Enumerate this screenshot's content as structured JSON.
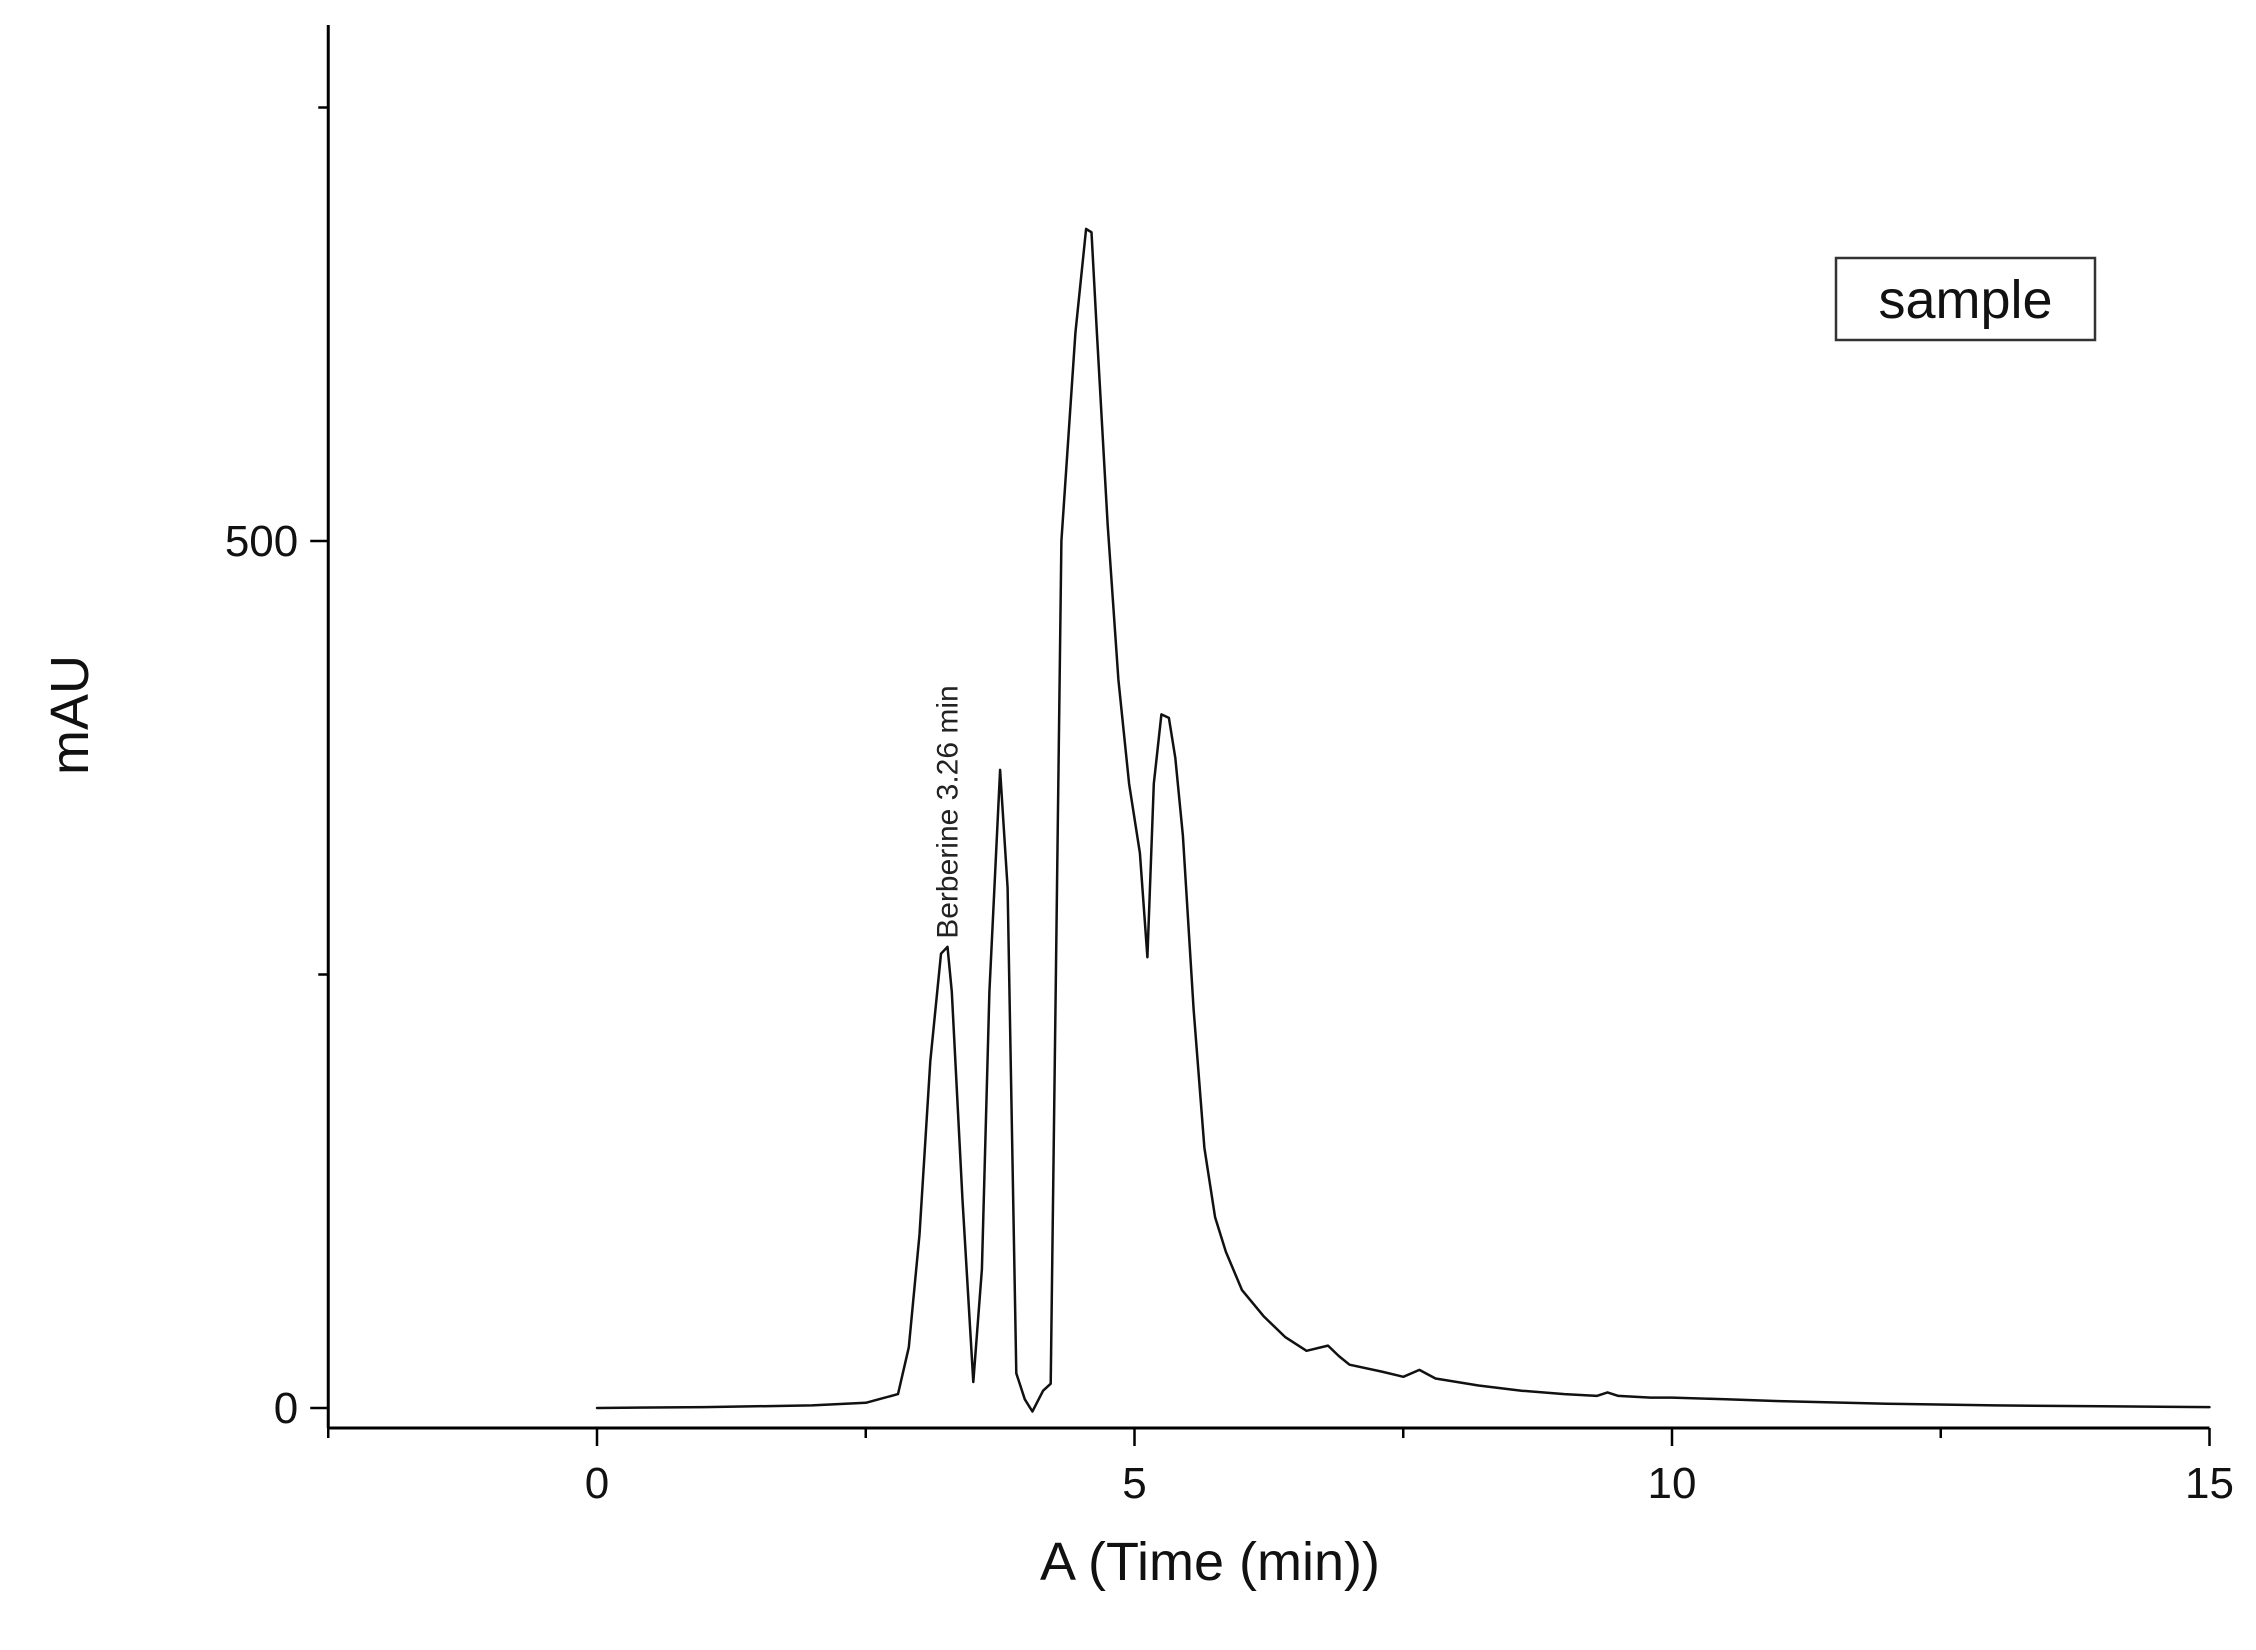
{
  "chart_data": {
    "type": "line",
    "title": "",
    "xlabel": "A (Time (min))",
    "ylabel": "mAU",
    "xlim": [
      -2.5,
      15
    ],
    "ylim": [
      -10,
      800
    ],
    "x_ticks": [
      0,
      5,
      10,
      15
    ],
    "x_tick_labels": [
      "0",
      "5",
      "10",
      "15"
    ],
    "x_minor_ticks": [
      -2.5,
      2.5,
      7.5,
      12.5
    ],
    "y_ticks": [
      0,
      500
    ],
    "y_tick_labels": [
      "0",
      "500"
    ],
    "y_minor_ticks": [
      250,
      750
    ],
    "grid": false,
    "legend": {
      "position": "top-right",
      "entries": [
        "sample"
      ]
    },
    "annotations": [
      {
        "text": "Berberine  3.26 min",
        "x": 3.26,
        "y": 266,
        "rotation": -90
      }
    ],
    "series": [
      {
        "name": "sample",
        "color": "#111111",
        "x": [
          0,
          1.0,
          2.0,
          2.5,
          2.8,
          2.9,
          3.0,
          3.1,
          3.2,
          3.26,
          3.3,
          3.4,
          3.5,
          3.58,
          3.65,
          3.75,
          3.82,
          3.9,
          3.98,
          4.05,
          4.15,
          4.22,
          4.32,
          4.45,
          4.55,
          4.6,
          4.65,
          4.75,
          4.85,
          4.95,
          5.05,
          5.12,
          5.18,
          5.25,
          5.32,
          5.38,
          5.45,
          5.55,
          5.65,
          5.75,
          5.85,
          6.0,
          6.2,
          6.4,
          6.6,
          6.8,
          6.9,
          7.0,
          7.3,
          7.5,
          7.65,
          7.8,
          8.2,
          8.6,
          9.0,
          9.3,
          9.4,
          9.5,
          9.8,
          10.0,
          10.5,
          11.0,
          12.0,
          13.0,
          14.0,
          15.0
        ],
        "y": [
          0,
          0.5,
          1.5,
          3,
          8,
          35,
          100,
          200,
          262,
          266,
          240,
          120,
          15,
          80,
          240,
          368,
          300,
          20,
          5,
          -2,
          10,
          14,
          500,
          620,
          680,
          678,
          620,
          510,
          420,
          360,
          320,
          260,
          360,
          400,
          398,
          375,
          330,
          230,
          150,
          110,
          90,
          68,
          53,
          41,
          33,
          36,
          30,
          25,
          21,
          18,
          22,
          17,
          13,
          10,
          8,
          7,
          9,
          7,
          6,
          6,
          5,
          4,
          2.5,
          1.5,
          1,
          0.5
        ]
      }
    ]
  }
}
